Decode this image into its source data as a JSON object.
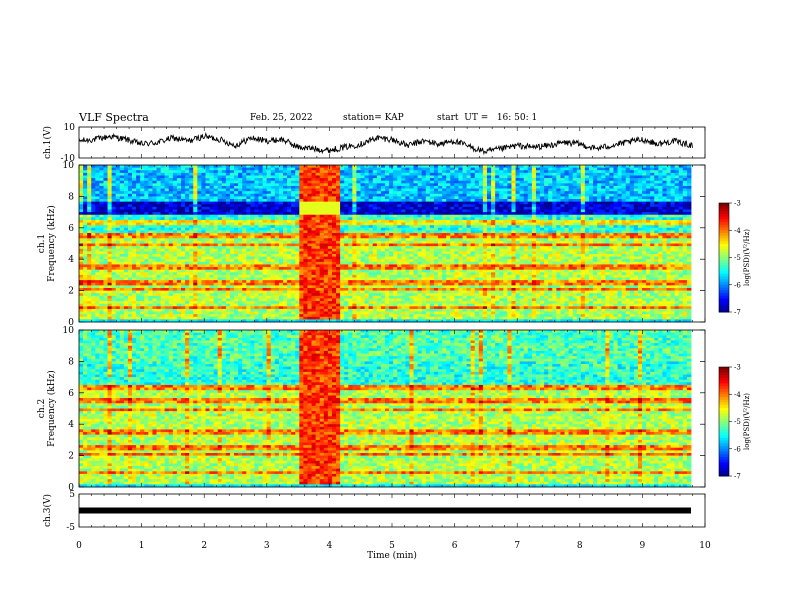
{
  "header": {
    "title": "VLF Spectra",
    "date": "Feb. 25, 2022",
    "station": "station= KAP",
    "start": "start  UT =   16: 50: 1"
  },
  "chart_data": [
    {
      "type": "line",
      "panel": "ch1-waveform",
      "ylabel": "ch.1(V)",
      "ylim": [
        -10,
        10
      ],
      "yticks": [
        "10",
        "-10"
      ],
      "xlim": [
        0,
        10
      ],
      "series": [
        {
          "x": [
            0,
            0.25,
            0.5,
            0.75,
            1,
            1.25,
            1.5,
            1.75,
            2,
            2.25,
            2.5,
            2.75,
            3,
            3.25,
            3.5,
            3.75,
            4,
            4.25,
            4.5,
            4.75,
            5,
            5.25,
            5.5,
            5.75,
            6,
            6.25,
            6.5,
            6.75,
            7,
            7.25,
            7.5,
            7.75,
            8,
            8.25,
            8.5,
            8.75,
            9,
            9.25,
            9.5,
            9.8
          ],
          "values": [
            1,
            2,
            4,
            2,
            -1,
            0,
            3,
            1,
            4,
            2,
            -2,
            3,
            1,
            2,
            -3,
            -4,
            -5,
            -3,
            -1,
            3,
            2,
            -2,
            1,
            -1,
            1,
            -3,
            -6,
            -4,
            -2,
            -3,
            -2,
            0,
            -1,
            -4,
            -2,
            0,
            2,
            -1,
            1,
            -2
          ]
        }
      ]
    },
    {
      "type": "heatmap",
      "panel": "ch1-spectrogram",
      "ylabel": "ch.1  Frequency  (kHz)",
      "ylim": [
        0,
        10
      ],
      "yticks": [
        "0",
        "2",
        "4",
        "6",
        "8",
        "10"
      ],
      "xlim": [
        0,
        10
      ],
      "colorbar": {
        "label": "log(PSD)(V²/Hz)",
        "range": [
          -7,
          -3
        ],
        "ticks": [
          "-3",
          "-4",
          "-5",
          "-6",
          "-7"
        ]
      },
      "enhanced_interval_min": [
        3.55,
        4.2
      ]
    },
    {
      "type": "heatmap",
      "panel": "ch2-spectrogram",
      "ylabel": "ch.2  Frequency  (kHz)",
      "ylim": [
        0,
        10
      ],
      "yticks": [
        "0",
        "2",
        "4",
        "6",
        "8",
        "10"
      ],
      "xlim": [
        0,
        10
      ],
      "colorbar": {
        "label": "log(PSD)(V²/Hz)",
        "range": [
          -7,
          -3
        ],
        "ticks": [
          "-3",
          "-4",
          "-5",
          "-6",
          "-7"
        ]
      },
      "enhanced_interval_min": [
        3.55,
        4.2
      ]
    },
    {
      "type": "line",
      "panel": "ch3-waveform",
      "ylabel": "ch.3(V)",
      "ylim": [
        -5,
        5
      ],
      "yticks": [
        "5",
        "-5"
      ],
      "xlim": [
        0,
        10
      ],
      "series": [
        {
          "x": [
            0,
            9.8
          ],
          "values": [
            0,
            0
          ]
        }
      ]
    }
  ],
  "xaxis": {
    "label": "Time  (min)",
    "ticks": [
      "0",
      "1",
      "2",
      "3",
      "4",
      "5",
      "6",
      "7",
      "8",
      "9",
      "10"
    ]
  }
}
